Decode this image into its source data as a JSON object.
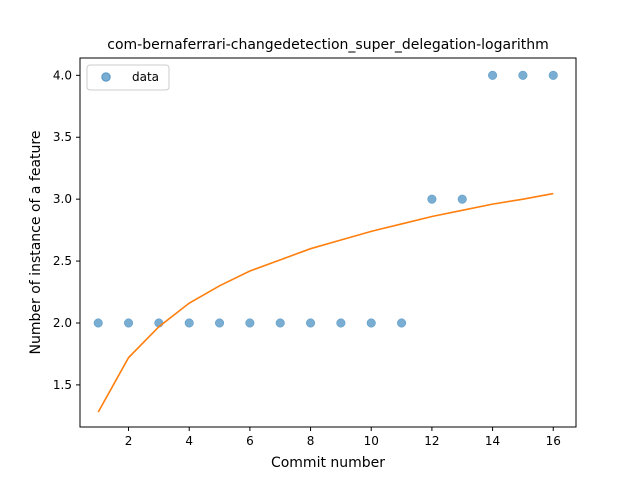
{
  "chart_data": {
    "type": "scatter",
    "title": "com-bernaferrari-changedetection_super_delegation-logarithm",
    "xlabel": "Commit number",
    "ylabel": "Number of instance of a feature",
    "xlim": [
      0.4,
      16.75
    ],
    "ylim": [
      1.16,
      4.14
    ],
    "xticks": [
      2,
      4,
      6,
      8,
      10,
      12,
      14,
      16
    ],
    "yticks": [
      1.5,
      2.0,
      2.5,
      3.0,
      3.5,
      4.0
    ],
    "xtick_labels": [
      "2",
      "4",
      "6",
      "8",
      "10",
      "12",
      "14",
      "16"
    ],
    "ytick_labels": [
      "1.5",
      "2.0",
      "2.5",
      "3.0",
      "3.5",
      "4.0"
    ],
    "grid": false,
    "legend_position": "upper left",
    "series": [
      {
        "name": "data",
        "type": "scatter",
        "color": "#1f77b4",
        "x": [
          1,
          2,
          3,
          4,
          5,
          6,
          7,
          8,
          9,
          10,
          11,
          12,
          13,
          14,
          15,
          16
        ],
        "y": [
          2,
          2,
          2,
          2,
          2,
          2,
          2,
          2,
          2,
          2,
          2,
          3,
          3,
          4,
          4,
          4
        ]
      },
      {
        "type": "line",
        "color": "#ff7f0e",
        "x": [
          1,
          2,
          3,
          4,
          5,
          6,
          7,
          8,
          9,
          10,
          11,
          12,
          13,
          14,
          15,
          16
        ],
        "y": [
          1.28,
          1.72,
          1.97,
          2.16,
          2.3,
          2.42,
          2.51,
          2.6,
          2.67,
          2.74,
          2.8,
          2.86,
          2.91,
          2.96,
          3.0,
          3.045
        ]
      }
    ]
  }
}
